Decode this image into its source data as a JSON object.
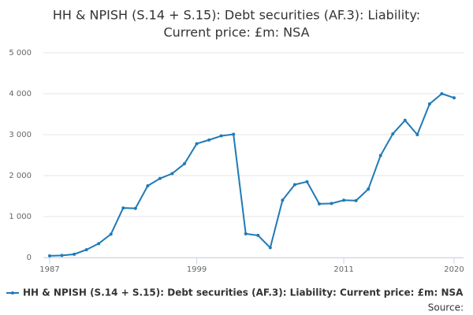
{
  "chart_data": {
    "type": "line",
    "title": [
      "HH & NPISH (S.14 + S.15): Debt securities (AF.3): Liability:",
      "Current price: £m: NSA"
    ],
    "x": [
      1987,
      1988,
      1989,
      1990,
      1991,
      1992,
      1993,
      1994,
      1995,
      1996,
      1997,
      1998,
      1999,
      2000,
      2001,
      2002,
      2003,
      2004,
      2005,
      2006,
      2007,
      2008,
      2009,
      2010,
      2011,
      2012,
      2013,
      2014,
      2015,
      2016,
      2017,
      2018,
      2019,
      2020
    ],
    "series": [
      {
        "name": "HH & NPISH (S.14 + S.15): Debt securities (AF.3): Liability: Current price: £m: NSA",
        "color": "#1f7ab7",
        "values": [
          40,
          50,
          80,
          190,
          340,
          570,
          1210,
          1200,
          1750,
          1930,
          2050,
          2290,
          2780,
          2870,
          2970,
          3010,
          580,
          540,
          240,
          1400,
          1780,
          1850,
          1310,
          1320,
          1400,
          1390,
          1670,
          2490,
          3020,
          3350,
          3000,
          3750,
          4000,
          3900
        ]
      }
    ],
    "xlim": [
      1987,
      2020
    ],
    "xticks": [
      1987,
      1999,
      2011,
      2020
    ],
    "ylim": [
      0,
      5000
    ],
    "yticks": [
      0,
      {
        "value": 1000,
        "label": "1 000"
      },
      {
        "value": 2000,
        "label": "2 000"
      },
      {
        "value": 3000,
        "label": "3 000"
      },
      {
        "value": 4000,
        "label": "4 000"
      },
      {
        "value": 5000,
        "label": "5 000"
      }
    ],
    "grid": true,
    "source": "Source:"
  }
}
